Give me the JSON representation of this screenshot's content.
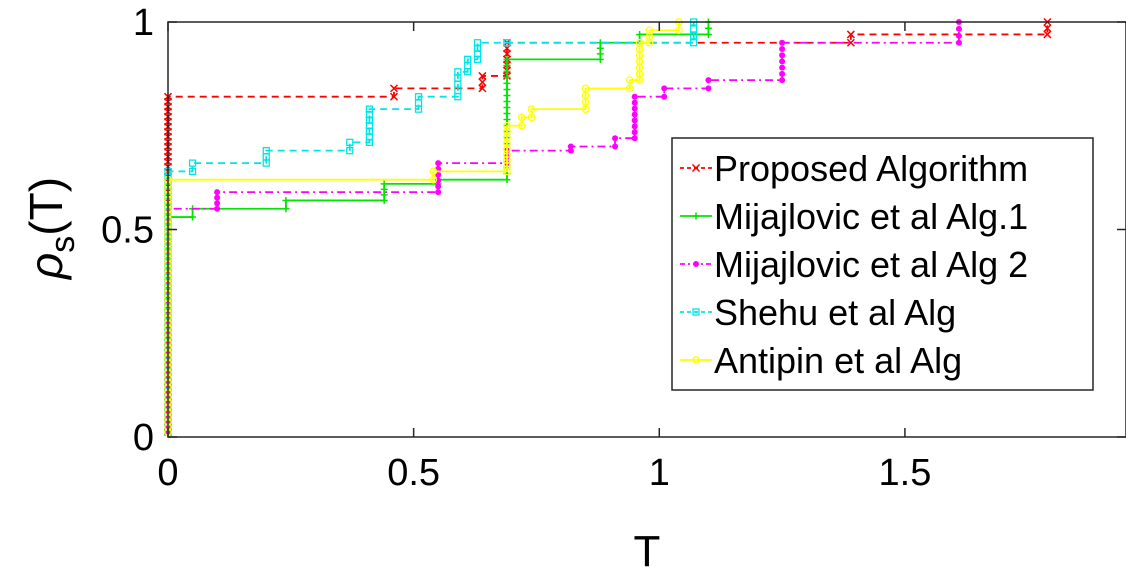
{
  "chart_data": {
    "type": "line",
    "title": "",
    "xlabel": "T",
    "ylabel": "ρ",
    "ylabel_subscript": "s",
    "ylabel_suffix": "(T)",
    "xlim": [
      0,
      1.95
    ],
    "ylim": [
      0,
      1
    ],
    "xticks": [
      0,
      0.5,
      1,
      1.5
    ],
    "xtick_labels": [
      "0",
      "0.5",
      "1",
      "1.5"
    ],
    "yticks": [
      0,
      0.5,
      1
    ],
    "ytick_labels": [
      "0",
      "0.5",
      "1"
    ],
    "grid": false,
    "legend_position": "right",
    "step": true,
    "series": [
      {
        "name": "Proposed Algorithm",
        "color": "#ff0000",
        "marker": "x",
        "dash": "dashed",
        "x": [
          0,
          0.46,
          0.64,
          0.69,
          1.39,
          1.79
        ],
        "y": [
          0.82,
          0.84,
          0.87,
          0.95,
          0.97,
          1.0
        ]
      },
      {
        "name": "Mijajlovic et al Alg.1",
        "color": "#00e600",
        "marker": "plus",
        "dash": "solid",
        "x": [
          0,
          0.05,
          0.24,
          0.44,
          0.55,
          0.69,
          0.88,
          0.96,
          1.1
        ],
        "y": [
          0.53,
          0.55,
          0.57,
          0.61,
          0.62,
          0.91,
          0.95,
          0.97,
          1.0
        ]
      },
      {
        "name": "Mijajlovic et al Alg 2",
        "color": "#ff00ff",
        "marker": "dot",
        "dash": "dashdot",
        "x": [
          0,
          0.1,
          0.55,
          0.69,
          0.82,
          0.91,
          0.95,
          1.01,
          1.1,
          1.25,
          1.61
        ],
        "y": [
          0.55,
          0.59,
          0.66,
          0.69,
          0.7,
          0.72,
          0.82,
          0.84,
          0.86,
          0.95,
          1.0
        ]
      },
      {
        "name": "Shehu et al Alg",
        "color": "#00e6e6",
        "marker": "square",
        "dash": "dashed",
        "x": [
          0,
          0.05,
          0.2,
          0.37,
          0.41,
          0.51,
          0.59,
          0.61,
          0.63,
          0.69,
          1.07
        ],
        "y": [
          0.64,
          0.66,
          0.69,
          0.71,
          0.79,
          0.82,
          0.88,
          0.91,
          0.95,
          0.95,
          1.0
        ]
      },
      {
        "name": "Antipin et al Alg",
        "color": "#ffff00",
        "marker": "circle",
        "dash": "solid",
        "x": [
          0,
          0.54,
          0.69,
          0.72,
          0.74,
          0.85,
          0.94,
          0.96,
          0.98,
          1.04
        ],
        "y": [
          0.62,
          0.64,
          0.75,
          0.77,
          0.79,
          0.84,
          0.86,
          0.95,
          0.98,
          1.0
        ]
      }
    ]
  }
}
